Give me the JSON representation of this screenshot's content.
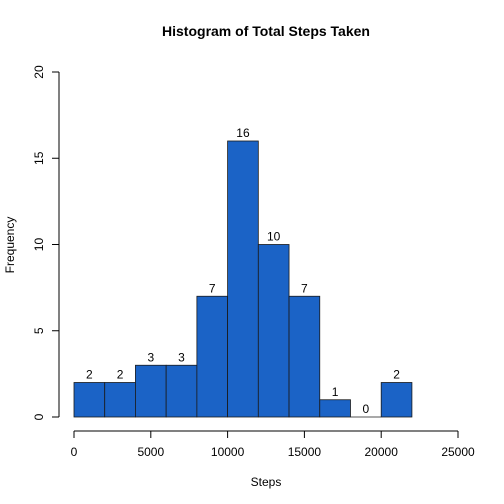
{
  "chart_data": {
    "type": "bar",
    "title": "Histogram of Total Steps Taken",
    "xlabel": "Steps",
    "ylabel": "Frequency",
    "bins": [
      {
        "start": 0,
        "end": 2000,
        "count": 2
      },
      {
        "start": 2000,
        "end": 4000,
        "count": 2
      },
      {
        "start": 4000,
        "end": 6000,
        "count": 3
      },
      {
        "start": 6000,
        "end": 8000,
        "count": 3
      },
      {
        "start": 8000,
        "end": 10000,
        "count": 7
      },
      {
        "start": 10000,
        "end": 12000,
        "count": 16
      },
      {
        "start": 12000,
        "end": 14000,
        "count": 10
      },
      {
        "start": 14000,
        "end": 16000,
        "count": 7
      },
      {
        "start": 16000,
        "end": 18000,
        "count": 1
      },
      {
        "start": 18000,
        "end": 20000,
        "count": 0
      },
      {
        "start": 20000,
        "end": 22000,
        "count": 2
      }
    ],
    "xlim": [
      0,
      25000
    ],
    "ylim": [
      0,
      20
    ],
    "xticks": [
      0,
      5000,
      10000,
      15000,
      20000,
      25000
    ],
    "yticks": [
      0,
      5,
      10,
      15,
      20
    ],
    "grid": false,
    "legend": "none",
    "colors": {
      "bar_fill": "#1b63c6",
      "bar_edge": "#1a1a1a"
    }
  }
}
